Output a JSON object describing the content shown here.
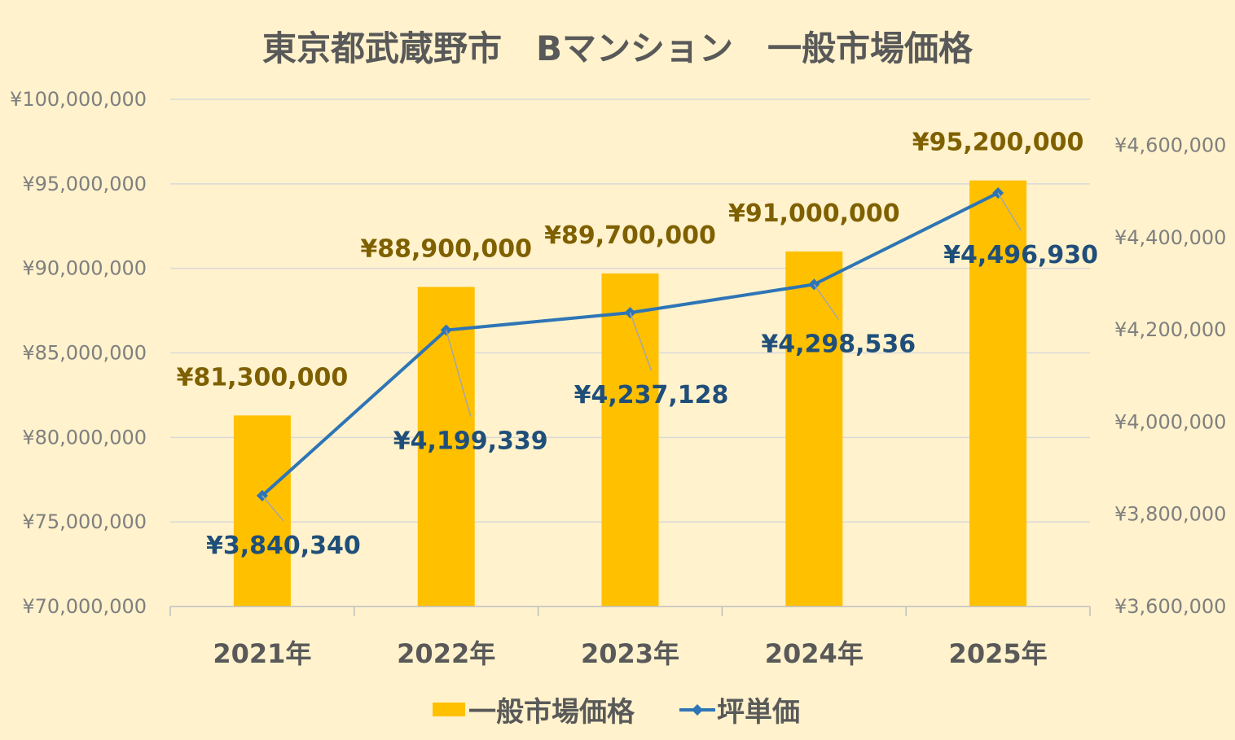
{
  "chart_data": {
    "type": "bar+line",
    "title": "東京都武蔵野市　Bマンション　一般市場価格",
    "categories": [
      "2021年",
      "2022年",
      "2023年",
      "2024年",
      "2025年"
    ],
    "series": [
      {
        "name": "一般市場価格",
        "type": "bar",
        "axis": "left",
        "color": "#FFC000",
        "values": [
          81300000,
          88900000,
          89700000,
          91000000,
          95200000
        ],
        "labels": [
          "¥81,300,000",
          "¥88,900,000",
          "¥89,700,000",
          "¥91,000,000",
          "¥95,200,000"
        ]
      },
      {
        "name": "坪単価",
        "type": "line",
        "axis": "right",
        "color": "#2E75B6",
        "marker": "diamond",
        "values": [
          3840340,
          4199339,
          4237128,
          4298536,
          4496930
        ],
        "labels": [
          "¥3,840,340",
          "¥4,199,339",
          "¥4,237,128",
          "¥4,298,536",
          "¥4,496,930"
        ]
      }
    ],
    "y_left": {
      "ylim": [
        70000000,
        100000000
      ],
      "ticks": [
        "¥70,000,000",
        "¥75,000,000",
        "¥80,000,000",
        "¥85,000,000",
        "¥90,000,000",
        "¥95,000,000",
        "¥100,000,000"
      ]
    },
    "y_right": {
      "ylim": [
        3600000,
        4700000
      ],
      "ticks": [
        "¥3,600,000",
        "¥3,800,000",
        "¥4,000,000",
        "¥4,200,000",
        "¥4,400,000",
        "¥4,600,000"
      ]
    },
    "grid": true,
    "legend": "bottom",
    "colors": {
      "background": "#FFF2CC",
      "bar_label": "#7F6000",
      "line_label": "#1F4E79",
      "grid": "#D9D9D9"
    }
  }
}
